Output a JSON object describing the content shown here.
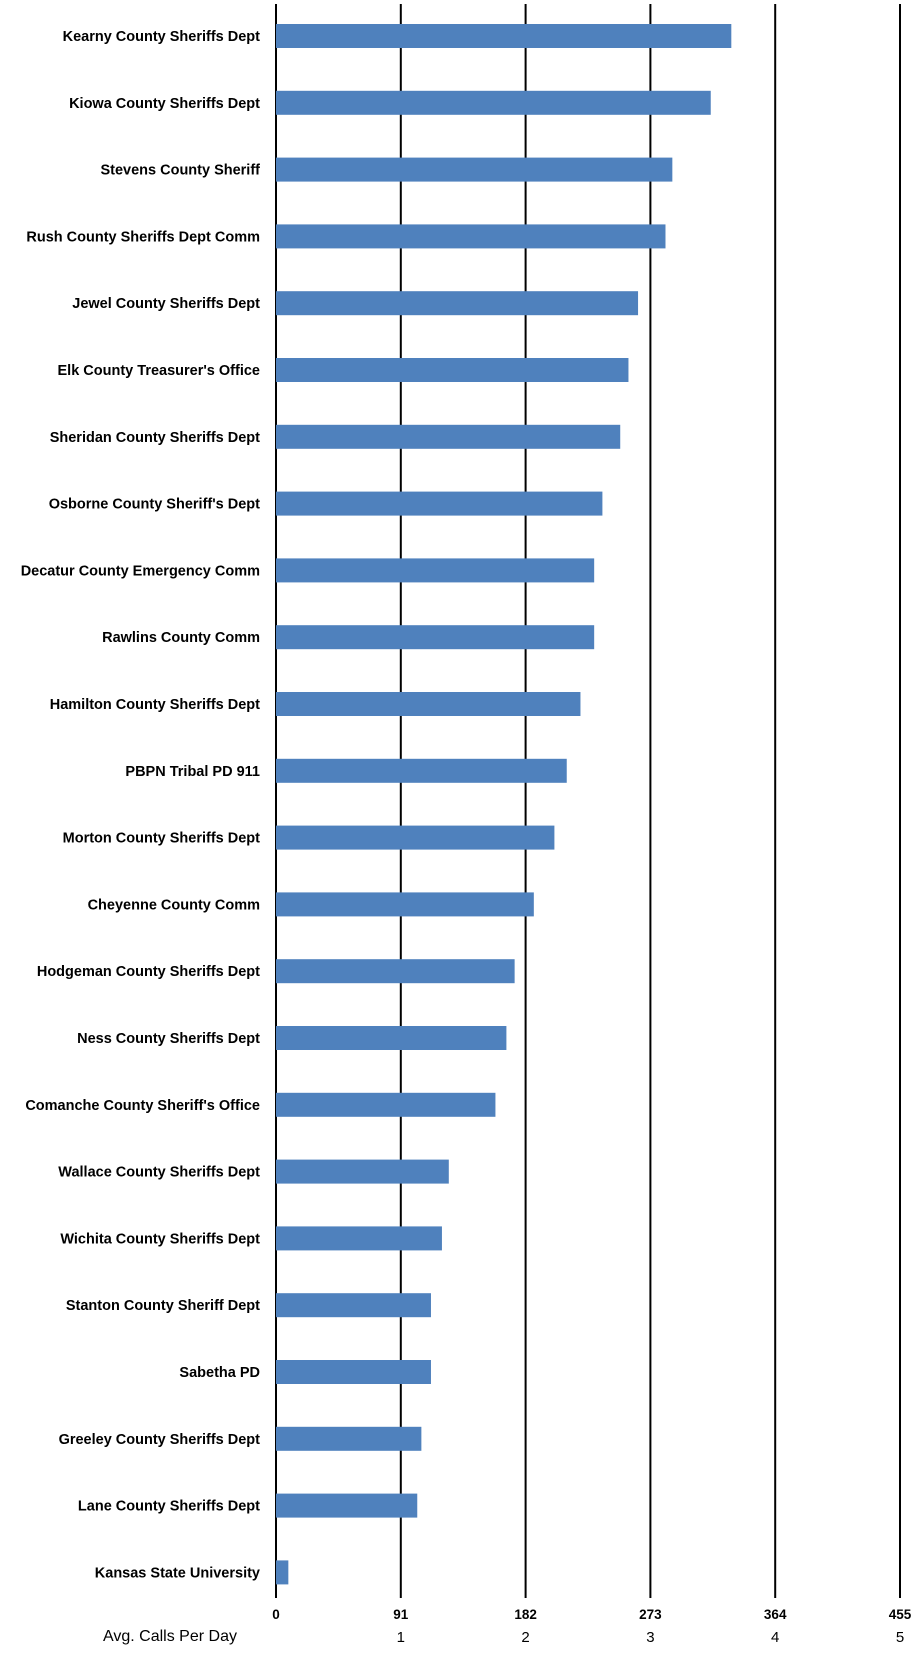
{
  "chart_data": {
    "type": "bar",
    "orientation": "horizontal",
    "categories": [
      "Kearny County Sheriffs Dept",
      "Kiowa County Sheriffs Dept",
      "Stevens County Sheriff",
      "Rush County Sheriffs Dept Comm",
      "Jewel County Sheriffs Dept",
      "Elk County Treasurer's Office",
      "Sheridan County Sheriffs Dept",
      "Osborne County Sheriff's Dept",
      "Decatur County Emergency Comm",
      "Rawlins County Comm",
      "Hamilton County Sheriffs Dept",
      "PBPN Tribal PD 911",
      "Morton County Sheriffs Dept",
      "Cheyenne County Comm",
      "Hodgeman County Sheriffs Dept",
      "Ness County Sheriffs Dept",
      "Comanche County Sheriff's Office",
      "Wallace County Sheriffs Dept",
      "Wichita County Sheriffs Dept",
      "Stanton County Sheriff Dept",
      "Sabetha PD",
      "Greeley County Sheriffs Dept",
      "Lane County Sheriffs Dept",
      "Kansas State University"
    ],
    "values": [
      332,
      317,
      289,
      284,
      264,
      257,
      251,
      238,
      232,
      232,
      222,
      212,
      203,
      188,
      174,
      168,
      160,
      126,
      121,
      113,
      113,
      106,
      103,
      9
    ],
    "xlim": [
      0,
      455
    ],
    "xticks": [
      "0",
      "91",
      "182",
      "273",
      "364",
      "455"
    ],
    "xticks_secondary": [
      "",
      "1",
      "2",
      "3",
      "4",
      "5"
    ],
    "xlabel": "Avg. Calls Per Day",
    "title": "",
    "ylabel": "",
    "grid": true,
    "bar_color": "#4f81bd"
  }
}
